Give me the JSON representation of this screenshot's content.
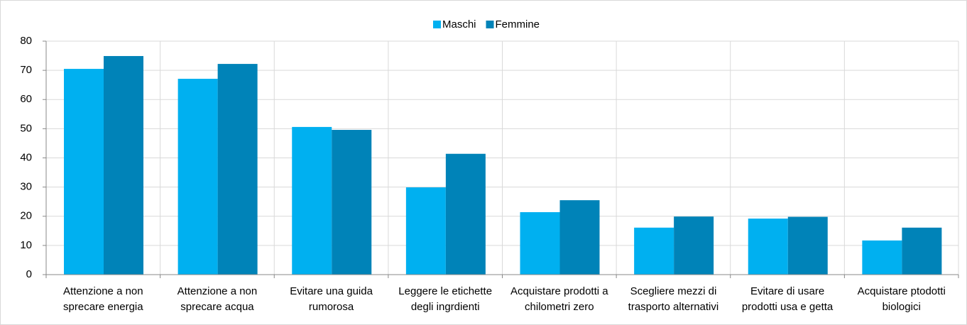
{
  "chart_data": {
    "type": "bar",
    "categories": [
      [
        "Attenzione a non",
        "sprecare energia"
      ],
      [
        "Attenzione a non",
        "sprecare acqua"
      ],
      [
        "Evitare una guida",
        "rumorosa"
      ],
      [
        "Leggere  le etichette",
        "degli ingrdienti"
      ],
      [
        "Acquistare prodotti a",
        "chilometri zero"
      ],
      [
        "Scegliere mezzi di",
        "trasporto alternativi"
      ],
      [
        "Evitare di usare",
        "prodotti usa e getta"
      ],
      [
        "Acquistare  ptodotti",
        "biologici"
      ]
    ],
    "series": [
      {
        "name": "Maschi",
        "color": "#00b0f0",
        "values": [
          70.5,
          67.1,
          50.6,
          29.9,
          21.4,
          16.1,
          19.2,
          11.7
        ]
      },
      {
        "name": "Femmine",
        "color": "#0083b8",
        "values": [
          74.9,
          72.2,
          49.6,
          41.4,
          25.5,
          19.9,
          19.8,
          16.1
        ]
      }
    ],
    "ylim": [
      0,
      80
    ],
    "yticks": [
      0,
      10,
      20,
      30,
      40,
      50,
      60,
      70,
      80
    ],
    "grid": true,
    "legend": "top"
  }
}
